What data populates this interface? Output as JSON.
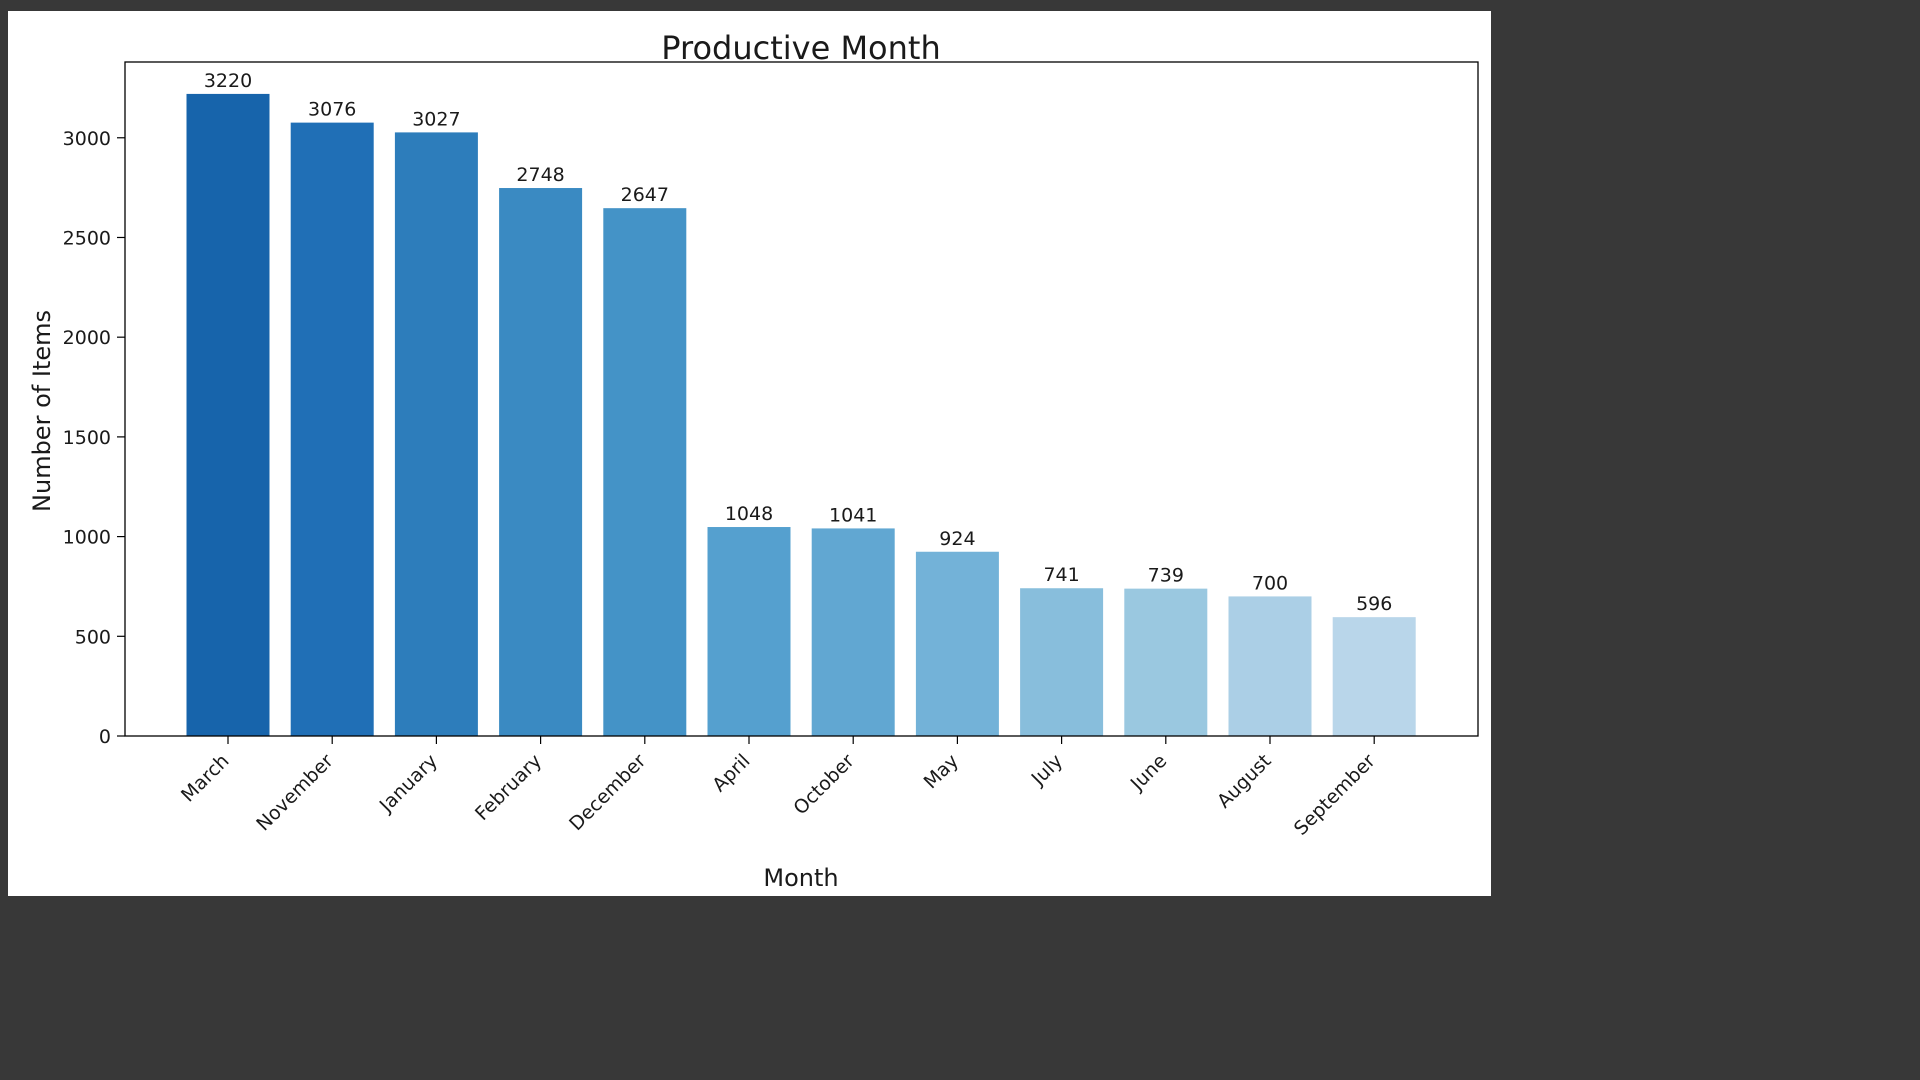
{
  "background_color": "#383838",
  "chart_data": {
    "type": "bar",
    "title": "Productive Month",
    "xlabel": "Month",
    "ylabel": "Number of Items",
    "categories": [
      "March",
      "November",
      "January",
      "February",
      "December",
      "April",
      "October",
      "May",
      "July",
      "June",
      "August",
      "September"
    ],
    "values": [
      3220,
      3076,
      3027,
      2748,
      2647,
      1048,
      1041,
      924,
      741,
      739,
      700,
      596
    ],
    "colors": [
      "#1764ab",
      "#206fb6",
      "#2d7dbb",
      "#3a8ac2",
      "#4493c7",
      "#55a0cf",
      "#61a7d2",
      "#73b2d8",
      "#88bedc",
      "#9ac8e0",
      "#abcfe6",
      "#b9d6ea"
    ],
    "ylim": [
      0,
      3380
    ],
    "yticks": [
      0,
      500,
      1000,
      1500,
      2000,
      2500,
      3000
    ],
    "grid": false,
    "legend": "none"
  }
}
